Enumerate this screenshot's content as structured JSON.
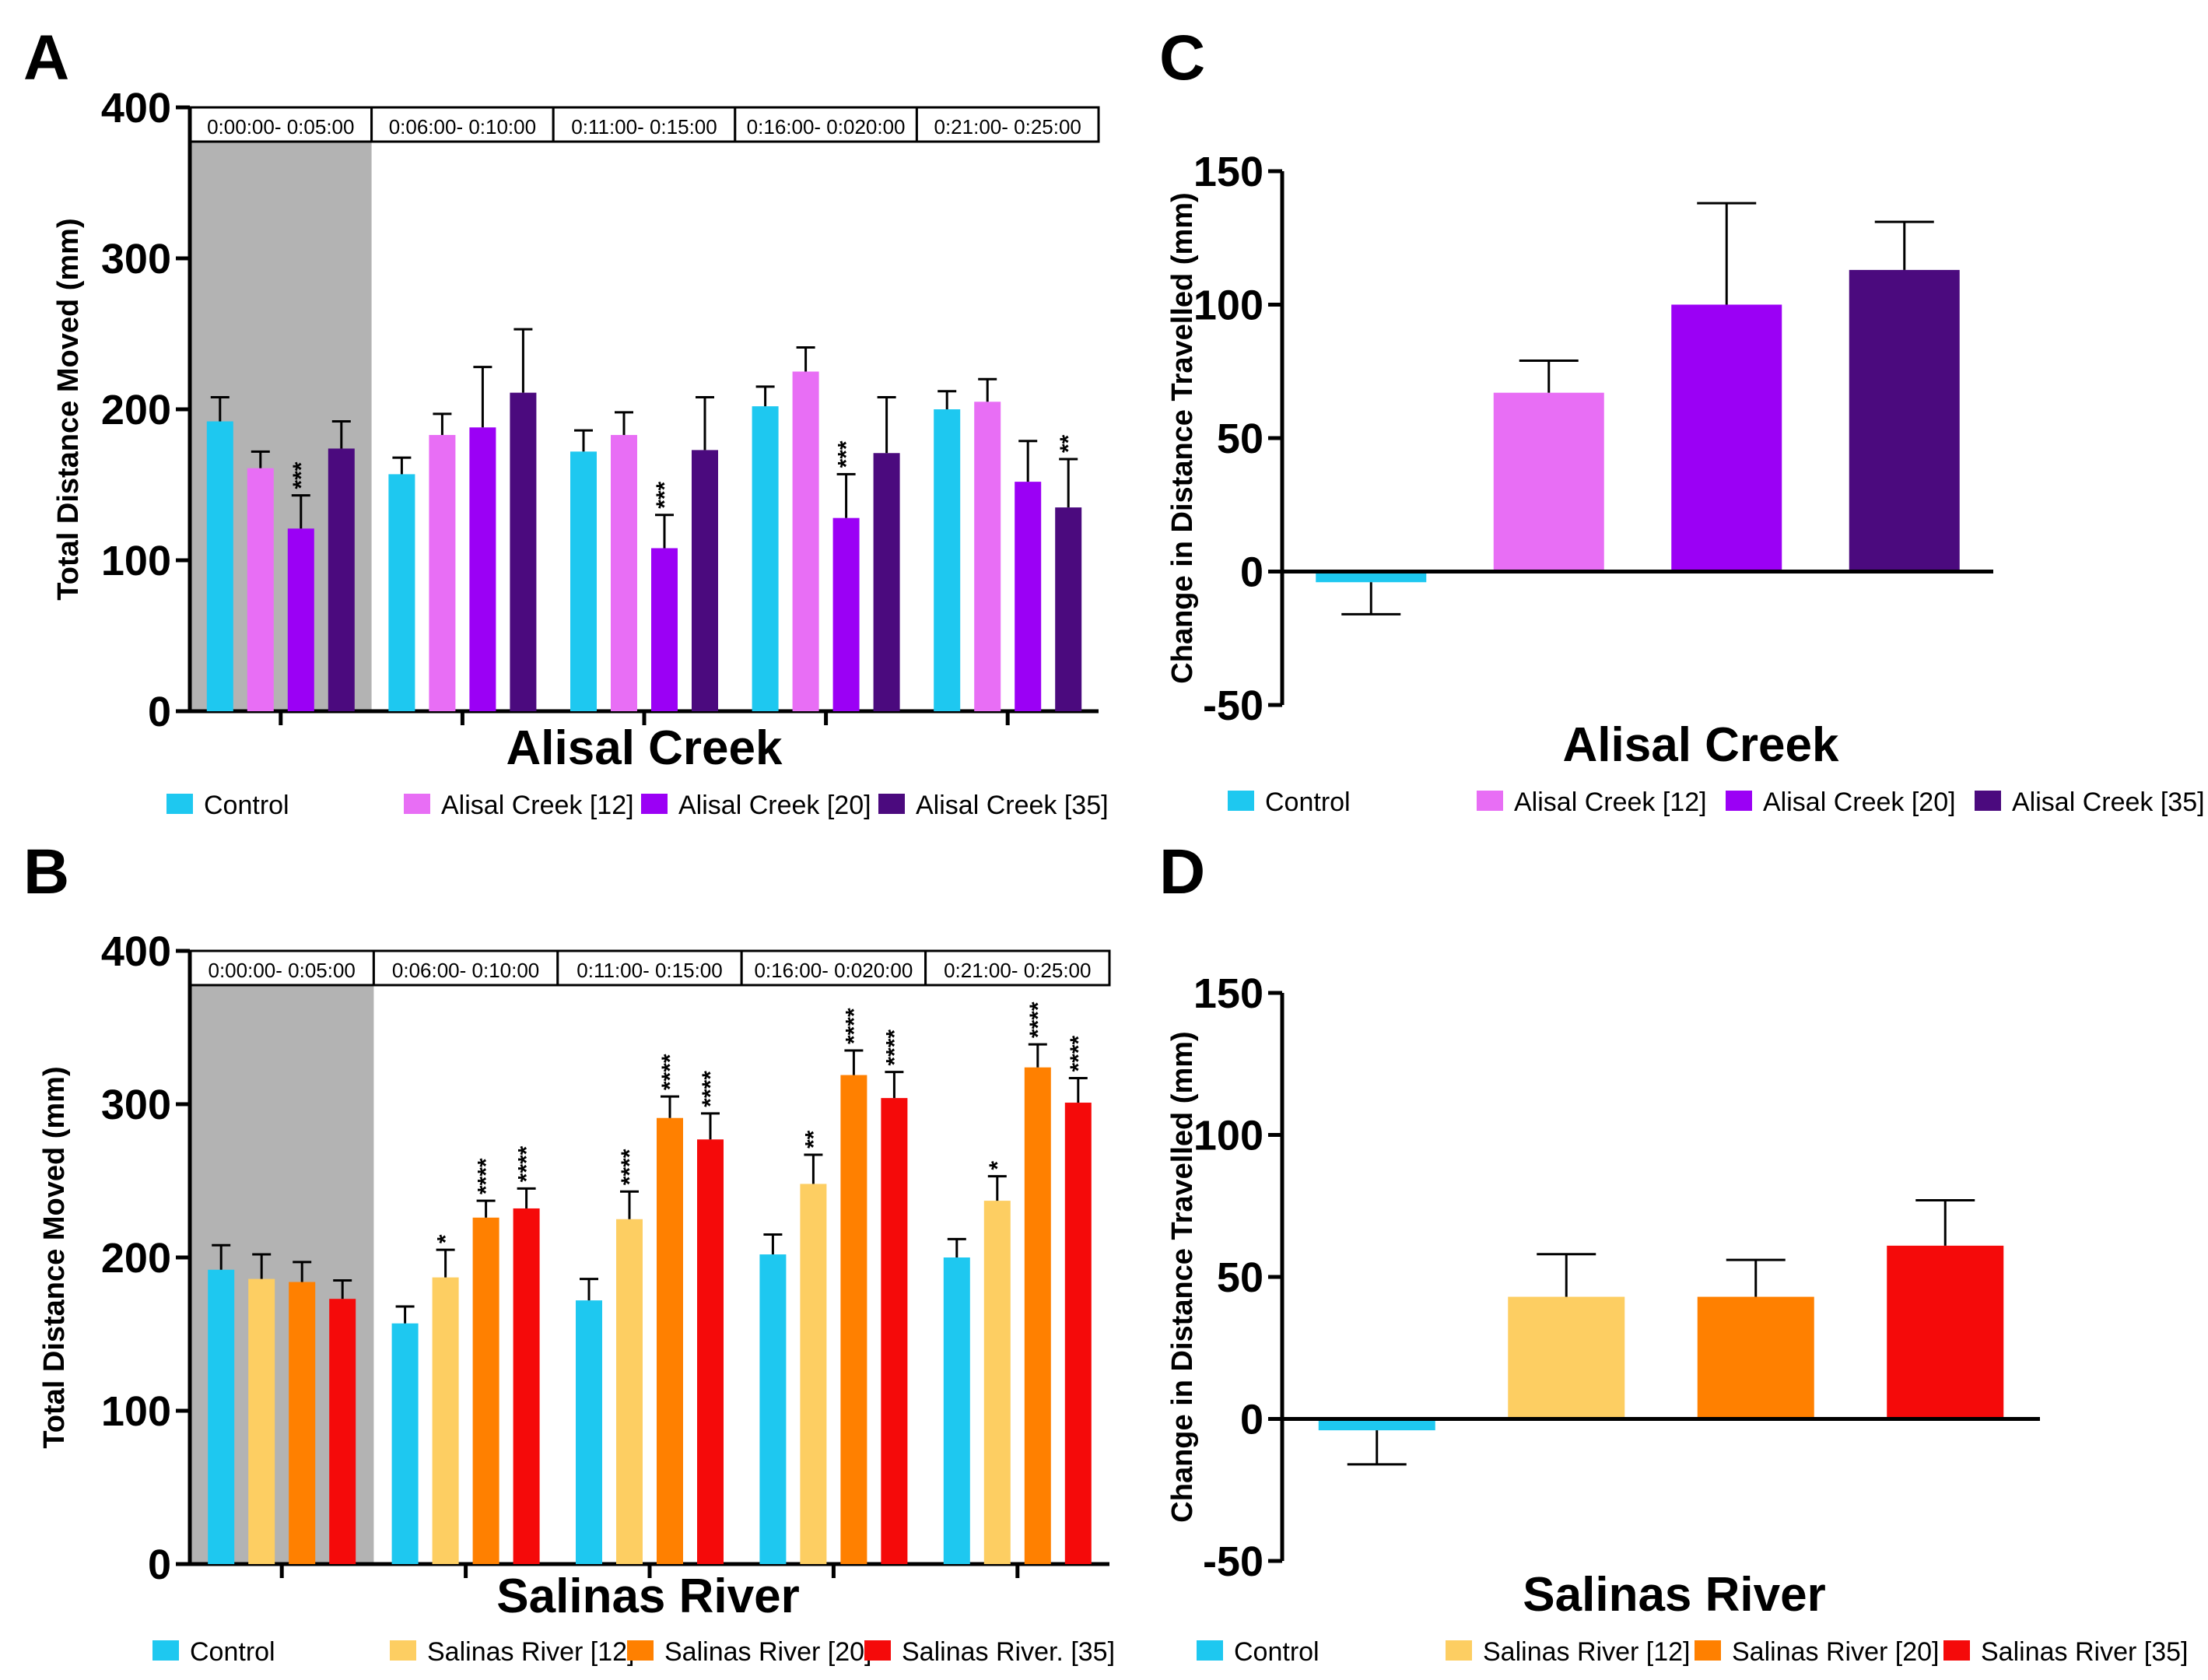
{
  "panels": {
    "A": "A",
    "B": "B",
    "C": "C",
    "D": "D"
  },
  "chart_data": [
    {
      "id": "A",
      "type": "bar",
      "ylabel": "Total Distance Moved (mm)",
      "xlabel": "Alisal Creek",
      "ylim": [
        0,
        400
      ],
      "yticks": [
        0,
        100,
        200,
        300,
        400
      ],
      "categories": [
        "0:00:00- 0:05:00",
        "0:06:00- 0:10:00",
        "0:11:00- 0:15:00",
        "0:16:00- 0:020:00",
        "0:21:00- 0:25:00"
      ],
      "shaded_category": 0,
      "series": [
        {
          "name": "Control",
          "color": "#1EC8F0",
          "values": [
            192,
            157,
            172,
            202,
            200
          ],
          "errors": [
            16,
            11,
            14,
            13,
            12
          ],
          "stars": [
            "",
            "",
            "",
            "",
            ""
          ]
        },
        {
          "name": "Alisal Creek [12]",
          "color": "#E86EF5",
          "values": [
            161,
            183,
            183,
            225,
            205
          ],
          "errors": [
            11,
            14,
            15,
            16,
            15
          ],
          "stars": [
            "",
            "",
            "",
            "",
            ""
          ]
        },
        {
          "name": "Alisal Creek [20]",
          "color": "#9B00F5",
          "values": [
            121,
            188,
            108,
            128,
            152
          ],
          "errors": [
            22,
            40,
            22,
            29,
            27
          ],
          "stars": [
            "***",
            "",
            "***",
            "***",
            ""
          ]
        },
        {
          "name": "Alisal Creek [35]",
          "color": "#4B0A7E",
          "values": [
            174,
            211,
            173,
            171,
            135
          ],
          "errors": [
            18,
            42,
            35,
            37,
            32
          ],
          "stars": [
            "",
            "",
            "",
            "",
            "**"
          ]
        }
      ],
      "legend": [
        "Control",
        "Alisal Creek [12]",
        "Alisal Creek [20]",
        "Alisal Creek [35]"
      ]
    },
    {
      "id": "B",
      "type": "bar",
      "ylabel": "Total Distance Moved (mm)",
      "xlabel": "Salinas River",
      "ylim": [
        0,
        400
      ],
      "yticks": [
        0,
        100,
        200,
        300,
        400
      ],
      "categories": [
        "0:00:00- 0:05:00",
        "0:06:00- 0:10:00",
        "0:11:00- 0:15:00",
        "0:16:00- 0:020:00",
        "0:21:00- 0:25:00"
      ],
      "shaded_category": 0,
      "series": [
        {
          "name": "Control",
          "color": "#1EC8F0",
          "values": [
            192,
            157,
            172,
            202,
            200
          ],
          "errors": [
            16,
            11,
            14,
            13,
            12
          ],
          "stars": [
            "",
            "",
            "",
            "",
            ""
          ]
        },
        {
          "name": "Salinas River [12]",
          "color": "#FDCE62",
          "values": [
            186,
            187,
            225,
            248,
            237
          ],
          "errors": [
            16,
            18,
            18,
            19,
            16
          ],
          "stars": [
            "",
            "*",
            "****",
            "**",
            "*"
          ]
        },
        {
          "name": "Salinas River [20]",
          "color": "#FF8000",
          "values": [
            184,
            226,
            291,
            319,
            324
          ],
          "errors": [
            13,
            11,
            14,
            16,
            15
          ],
          "stars": [
            "",
            "****",
            "****",
            "****",
            "****"
          ]
        },
        {
          "name": "Salinas River [35]",
          "color": "#F50A0A",
          "values": [
            173,
            232,
            277,
            304,
            301
          ],
          "errors": [
            12,
            13,
            17,
            17,
            16
          ],
          "stars": [
            "",
            "****",
            "****",
            "****",
            "****"
          ]
        }
      ],
      "legend": [
        "Control",
        "Salinas River [12]",
        "Salinas River [20]",
        "Salinas River. [35]"
      ]
    },
    {
      "id": "C",
      "type": "bar",
      "ylabel": "Change in Distance Travelled (mm)",
      "xlabel": "Alisal Creek",
      "ylim": [
        -50,
        150
      ],
      "yticks": [
        -50,
        0,
        50,
        100,
        150
      ],
      "series": [
        {
          "name": "Control",
          "color": "#1EC8F0",
          "value": -4,
          "error": 12
        },
        {
          "name": "Alisal Creek [12]",
          "color": "#E86EF5",
          "value": 67,
          "error": 12
        },
        {
          "name": "Alisal Creek [20]",
          "color": "#9B00F5",
          "value": 100,
          "error": 38
        },
        {
          "name": "Alisal Creek [35]",
          "color": "#4B0A7E",
          "value": 113,
          "error": 18
        }
      ],
      "legend": [
        "Control",
        "Alisal Creek [12]",
        "Alisal Creek  [20]",
        "Alisal Creek [35]"
      ]
    },
    {
      "id": "D",
      "type": "bar",
      "ylabel": "Change in Distance Travelled (mm)",
      "xlabel": "Salinas River",
      "ylim": [
        -50,
        150
      ],
      "yticks": [
        -50,
        0,
        50,
        100,
        150
      ],
      "series": [
        {
          "name": "Control",
          "color": "#1EC8F0",
          "value": -4,
          "error": 12
        },
        {
          "name": "Salinas River [12]",
          "color": "#FDCE62",
          "value": 43,
          "error": 15
        },
        {
          "name": "Salinas River [20]",
          "color": "#FF8000",
          "value": 43,
          "error": 13
        },
        {
          "name": "Salinas River [35]",
          "color": "#F50A0A",
          "value": 61,
          "error": 16
        }
      ],
      "legend": [
        "Control",
        "Salinas River [12]",
        "Salinas River [20]",
        "Salinas River [35]"
      ]
    }
  ]
}
